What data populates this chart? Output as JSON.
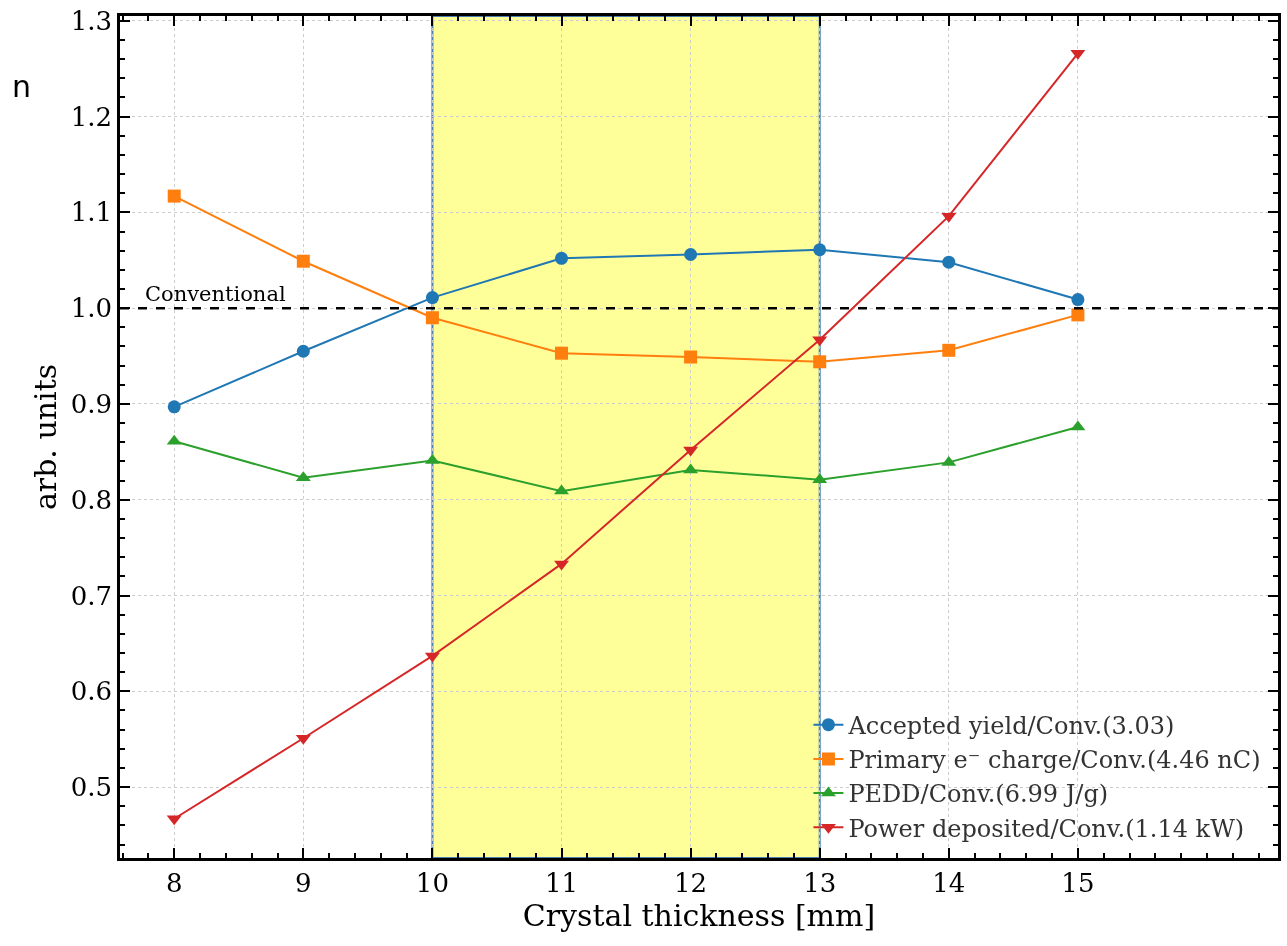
{
  "chart_data": {
    "type": "line",
    "xlabel": "Crystal thickness [mm]",
    "ylabel": "arb. units",
    "x": [
      8,
      9,
      10,
      11,
      12,
      13,
      14,
      15
    ],
    "series": [
      {
        "name": "Accepted yield/Conv.(3.03)",
        "color": "#1f77b4",
        "marker": "circle",
        "values": [
          0.897,
          0.955,
          1.011,
          1.052,
          1.056,
          1.061,
          1.048,
          1.009
        ]
      },
      {
        "name": "Primary e⁻ charge/Conv.(4.46 nC)",
        "color": "#ff7f0e",
        "marker": "square",
        "values": [
          1.117,
          1.049,
          0.99,
          0.953,
          0.949,
          0.944,
          0.956,
          0.993
        ]
      },
      {
        "name": "PEDD/Conv.(6.99 J/g)",
        "color": "#2ca02c",
        "marker": "triangle",
        "values": [
          0.861,
          0.823,
          0.841,
          0.809,
          0.831,
          0.821,
          0.839,
          0.876
        ]
      },
      {
        "name": "Power deposited/Conv.(1.14 kW)",
        "color": "#d62728",
        "marker": "triangle-down",
        "values": [
          0.467,
          0.551,
          0.637,
          0.733,
          0.852,
          0.967,
          1.096,
          1.266
        ]
      }
    ],
    "xlim": [
      7.58,
      16.55
    ],
    "xticks": [
      8,
      9,
      10,
      11,
      12,
      13,
      14,
      15
    ],
    "ylim": [
      0.426,
      1.305
    ],
    "yticks": [
      0.5,
      0.6,
      0.7,
      0.8,
      0.9,
      {
        "value": 1,
        "label": "1.0"
      },
      1.1,
      1.2,
      1.3
    ],
    "ref_lines": [
      {
        "axis": "y",
        "value": 1,
        "label": "Conventional",
        "color": "#000000",
        "line_style": "dashed"
      }
    ],
    "bands": [
      {
        "axis": "x",
        "from": 10,
        "to": 13,
        "color": "#ffff99"
      }
    ],
    "annotations": [
      "n"
    ],
    "grid": true,
    "legend": "bottom right",
    "line_style": "solid"
  }
}
